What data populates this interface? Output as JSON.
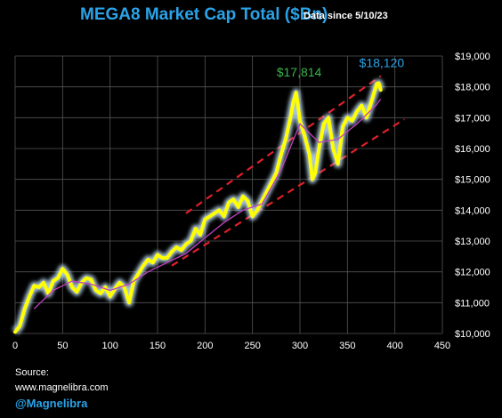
{
  "header": {
    "title": "MEGA8 Market Cap Total ($Bn)",
    "subtitle": "Data since 5/10/23"
  },
  "footer": {
    "source_label": "Source:",
    "source_url": "www.magnelibra.com",
    "handle": "@Magnelibra"
  },
  "colors": {
    "background": "#000000",
    "grid": "#555555",
    "price_line": "#ffff00",
    "price_glow": "#c8e8ff",
    "moving_average": "#c040c0",
    "channel": "#e0202a",
    "title": "#2aa3e8",
    "peak_green": "#3ab54a",
    "peak_blue": "#2aa3e8"
  },
  "chart_data": {
    "type": "line",
    "title": "MEGA8 Market Cap Total ($Bn)",
    "subtitle": "Data since 5/10/23",
    "xlim": [
      0,
      450
    ],
    "ylim": [
      10000,
      19000
    ],
    "x_ticks": [
      0,
      50,
      100,
      150,
      200,
      250,
      300,
      350,
      400,
      450
    ],
    "y_ticks": [
      10000,
      11000,
      12000,
      13000,
      14000,
      15000,
      16000,
      17000,
      18000,
      19000
    ],
    "x_tick_labels": [
      "0",
      "50",
      "100",
      "150",
      "200",
      "250",
      "300",
      "350",
      "400",
      "450"
    ],
    "y_tick_labels": [
      "$10,000",
      "$11,000",
      "$12,000",
      "$13,000",
      "$14,000",
      "$15,000",
      "$16,000",
      "$17,000",
      "$18,000",
      "$19,000"
    ],
    "y_axis_side": "right",
    "grid": true,
    "series": [
      {
        "x": [
          0,
          5,
          10,
          15,
          20,
          25,
          30,
          35,
          40,
          45,
          50,
          55,
          60,
          65,
          70,
          75,
          80,
          85,
          90,
          95,
          100,
          105,
          110,
          115,
          120,
          125,
          130,
          135,
          140,
          145,
          150,
          155,
          160,
          165,
          170,
          175,
          180,
          185,
          190,
          195,
          200,
          205,
          210,
          215,
          220,
          225,
          230,
          235,
          240,
          245,
          250,
          255,
          260,
          265,
          270,
          275,
          280,
          285,
          290,
          293,
          296,
          300,
          305,
          310,
          313,
          316,
          320,
          325,
          330,
          335,
          340,
          345,
          350,
          355,
          360,
          365,
          370,
          375,
          378,
          381,
          383,
          385
        ],
        "values": [
          10050,
          10250,
          10800,
          11200,
          11550,
          11500,
          11650,
          11300,
          11700,
          11800,
          12100,
          11900,
          11500,
          11350,
          11650,
          11800,
          11750,
          11400,
          11300,
          11500,
          11200,
          11450,
          11650,
          11500,
          11000,
          11700,
          11950,
          12200,
          12400,
          12300,
          12550,
          12450,
          12450,
          12650,
          12800,
          12700,
          12900,
          13000,
          13400,
          13200,
          13700,
          13800,
          13900,
          14000,
          13800,
          14250,
          14350,
          14100,
          14450,
          14300,
          13800,
          14000,
          14300,
          14600,
          14900,
          15200,
          15800,
          16300,
          17000,
          17500,
          17814,
          16900,
          16400,
          15800,
          15000,
          15200,
          16000,
          16800,
          17000,
          16000,
          15500,
          16700,
          17000,
          16900,
          17200,
          17400,
          17000,
          17500,
          17800,
          18100,
          18120,
          17900
        ]
      },
      {
        "x": [
          20,
          40,
          60,
          80,
          100,
          120,
          140,
          160,
          180,
          200,
          220,
          240,
          260,
          280,
          300,
          320,
          340,
          360,
          380,
          385
        ],
        "values": [
          10800,
          11400,
          11700,
          11600,
          11400,
          11600,
          12000,
          12300,
          12600,
          13100,
          13600,
          14000,
          14200,
          15300,
          16800,
          16200,
          16300,
          16800,
          17400,
          17600
        ]
      },
      {
        "x": [
          180,
          385
        ],
        "values": [
          13900,
          18350
        ]
      },
      {
        "x": [
          165,
          410
        ],
        "values": [
          12200,
          16950
        ]
      }
    ],
    "annotations": [
      {
        "text": "$17,814",
        "x": 296,
        "y": 17814,
        "color": "#3ab54a"
      },
      {
        "text": "$18,120",
        "x": 383,
        "y": 18120,
        "color": "#2aa3e8"
      }
    ]
  }
}
